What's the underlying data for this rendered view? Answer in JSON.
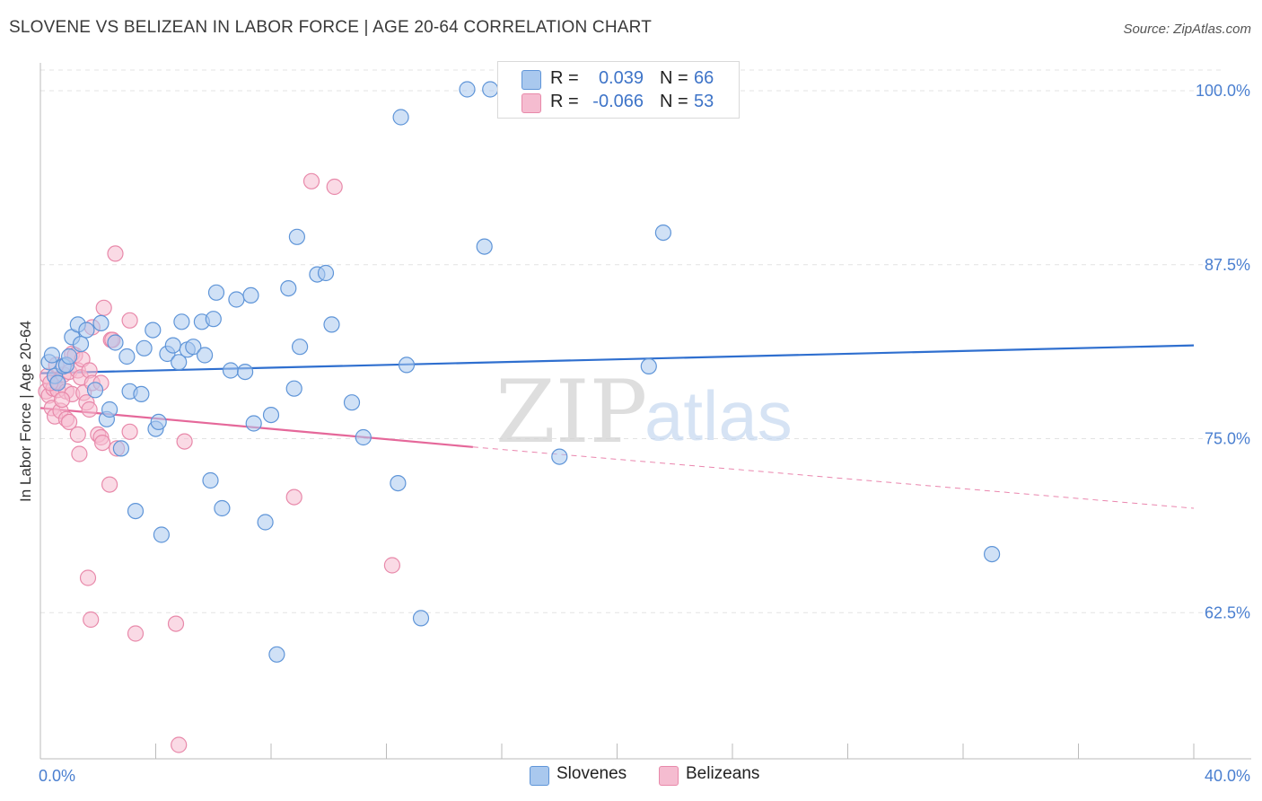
{
  "title": "SLOVENE VS BELIZEAN IN LABOR FORCE | AGE 20-64 CORRELATION CHART",
  "source": "Source: ZipAtlas.com",
  "watermark": {
    "zip": "ZIP",
    "atlas": "atlas"
  },
  "legend": {
    "rows": [
      {
        "r_label": "R =",
        "r_value": "0.039",
        "n_label": "N =",
        "n_value": "66"
      },
      {
        "r_label": "R =",
        "r_value": "-0.066",
        "n_label": "N =",
        "n_value": "53"
      }
    ]
  },
  "bottom_legend": {
    "slovenes": "Slovenes",
    "belizeans": "Belizeans"
  },
  "colors": {
    "slovenes_fill": "#a9c8ee",
    "slovenes_stroke": "#5f95d8",
    "slovenes_line": "#2f6fcf",
    "belizeans_fill": "#f5bcd0",
    "belizeans_stroke": "#e889aa",
    "belizeans_line": "#e5689a",
    "grid": "#e3e3e3",
    "tick_text": "#4a7fd0"
  },
  "chart_data": {
    "type": "scatter",
    "title": "SLOVENE VS BELIZEAN IN LABOR FORCE | AGE 20-64 CORRELATION CHART",
    "xlabel": "",
    "ylabel": "In Labor Force | Age 20-64",
    "xlim": [
      0,
      40
    ],
    "ylim": [
      52,
      102
    ],
    "x_tick_labels": [
      "0.0%",
      "40.0%"
    ],
    "y_ticks": [
      62.5,
      75.0,
      87.5,
      100.0
    ],
    "y_tick_labels": [
      "62.5%",
      "75.0%",
      "87.5%",
      "100.0%"
    ],
    "series": [
      {
        "name": "Slovenes",
        "r": 0.039,
        "n": 66,
        "trend": {
          "x": [
            0,
            40
          ],
          "y": [
            79.7,
            81.7
          ]
        },
        "points": [
          [
            0.3,
            80.5
          ],
          [
            0.4,
            81.0
          ],
          [
            0.5,
            79.5
          ],
          [
            0.6,
            79.0
          ],
          [
            0.8,
            80.2
          ],
          [
            0.9,
            80.3
          ],
          [
            1.0,
            80.9
          ],
          [
            1.1,
            82.3
          ],
          [
            1.3,
            83.2
          ],
          [
            1.4,
            81.8
          ],
          [
            1.6,
            82.8
          ],
          [
            1.9,
            78.5
          ],
          [
            2.1,
            83.3
          ],
          [
            2.3,
            76.4
          ],
          [
            2.4,
            77.1
          ],
          [
            2.6,
            81.9
          ],
          [
            2.8,
            74.3
          ],
          [
            3.0,
            80.9
          ],
          [
            3.1,
            78.4
          ],
          [
            3.3,
            69.8
          ],
          [
            3.5,
            78.2
          ],
          [
            3.6,
            81.5
          ],
          [
            3.9,
            82.8
          ],
          [
            4.0,
            75.7
          ],
          [
            4.1,
            76.2
          ],
          [
            4.2,
            68.1
          ],
          [
            4.4,
            81.1
          ],
          [
            4.6,
            81.7
          ],
          [
            4.8,
            80.5
          ],
          [
            4.9,
            83.4
          ],
          [
            5.1,
            81.4
          ],
          [
            5.3,
            81.6
          ],
          [
            5.6,
            83.4
          ],
          [
            5.7,
            81.0
          ],
          [
            6.0,
            83.6
          ],
          [
            5.9,
            72.0
          ],
          [
            6.1,
            85.5
          ],
          [
            6.3,
            70.0
          ],
          [
            6.6,
            79.9
          ],
          [
            6.8,
            85.0
          ],
          [
            7.1,
            79.8
          ],
          [
            7.3,
            85.3
          ],
          [
            7.4,
            76.1
          ],
          [
            7.8,
            69.0
          ],
          [
            8.0,
            76.7
          ],
          [
            8.2,
            59.5
          ],
          [
            8.6,
            85.8
          ],
          [
            8.8,
            78.6
          ],
          [
            8.9,
            89.5
          ],
          [
            9.0,
            81.6
          ],
          [
            9.6,
            86.8
          ],
          [
            9.9,
            86.9
          ],
          [
            10.1,
            83.2
          ],
          [
            10.8,
            77.6
          ],
          [
            11.2,
            75.1
          ],
          [
            12.4,
            71.8
          ],
          [
            12.5,
            98.1
          ],
          [
            12.7,
            80.3
          ],
          [
            13.2,
            62.1
          ],
          [
            14.8,
            100.1
          ],
          [
            15.4,
            88.8
          ],
          [
            15.6,
            100.1
          ],
          [
            18.0,
            73.7
          ],
          [
            21.1,
            80.2
          ],
          [
            21.6,
            89.8
          ],
          [
            33.0,
            66.7
          ]
        ]
      },
      {
        "name": "Belizeans",
        "r": -0.066,
        "n": 53,
        "trend": {
          "x": [
            0,
            15
          ],
          "y": [
            77.2,
            74.4
          ]
        },
        "trend_dashed": {
          "x": [
            15,
            40
          ],
          "y": [
            74.4,
            70.0
          ]
        },
        "points": [
          [
            0.2,
            78.4
          ],
          [
            0.25,
            79.5
          ],
          [
            0.3,
            78.1
          ],
          [
            0.4,
            77.2
          ],
          [
            0.45,
            78.6
          ],
          [
            0.5,
            76.6
          ],
          [
            0.6,
            78.5
          ],
          [
            0.6,
            79.1
          ],
          [
            0.7,
            77.0
          ],
          [
            0.8,
            79.6
          ],
          [
            0.9,
            78.4
          ],
          [
            0.9,
            76.4
          ],
          [
            1.0,
            76.2
          ],
          [
            1.0,
            79.8
          ],
          [
            1.1,
            78.2
          ],
          [
            1.1,
            81.1
          ],
          [
            1.2,
            81.0
          ],
          [
            1.3,
            75.3
          ],
          [
            1.3,
            79.9
          ],
          [
            1.35,
            73.9
          ],
          [
            1.4,
            79.4
          ],
          [
            1.45,
            80.7
          ],
          [
            1.5,
            78.3
          ],
          [
            1.6,
            77.6
          ],
          [
            1.65,
            65.0
          ],
          [
            1.7,
            77.1
          ],
          [
            1.7,
            79.9
          ],
          [
            1.75,
            62.0
          ],
          [
            1.8,
            83.0
          ],
          [
            1.8,
            79.0
          ],
          [
            2.0,
            75.3
          ],
          [
            2.1,
            79.0
          ],
          [
            2.1,
            75.1
          ],
          [
            2.15,
            74.7
          ],
          [
            2.2,
            84.4
          ],
          [
            2.4,
            71.7
          ],
          [
            2.45,
            82.1
          ],
          [
            2.5,
            82.1
          ],
          [
            2.6,
            88.3
          ],
          [
            2.65,
            74.3
          ],
          [
            3.1,
            75.5
          ],
          [
            3.1,
            83.5
          ],
          [
            3.3,
            61.0
          ],
          [
            4.7,
            61.7
          ],
          [
            4.8,
            53.0
          ],
          [
            5.0,
            74.8
          ],
          [
            8.8,
            70.8
          ],
          [
            9.4,
            93.5
          ],
          [
            10.2,
            93.1
          ],
          [
            12.2,
            65.9
          ],
          [
            0.35,
            79.0
          ],
          [
            0.55,
            80.3
          ],
          [
            0.75,
            77.8
          ]
        ]
      }
    ]
  }
}
